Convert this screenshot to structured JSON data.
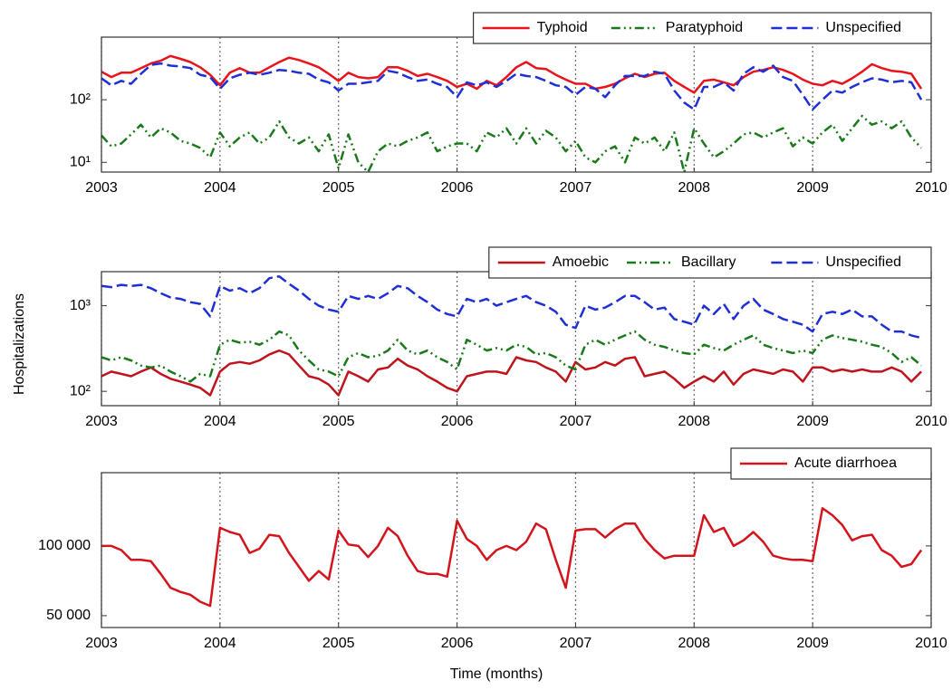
{
  "chart_data": [
    {
      "type": "line",
      "log_scale": true,
      "grid": "x",
      "legend_loc": "upper right",
      "x": [
        2003,
        2003.083,
        2003.167,
        2003.25,
        2003.333,
        2003.417,
        2003.5,
        2003.583,
        2003.667,
        2003.75,
        2003.833,
        2003.917,
        2004,
        2004.083,
        2004.167,
        2004.25,
        2004.333,
        2004.417,
        2004.5,
        2004.583,
        2004.667,
        2004.75,
        2004.833,
        2004.917,
        2005,
        2005.083,
        2005.167,
        2005.25,
        2005.333,
        2005.417,
        2005.5,
        2005.583,
        2005.667,
        2005.75,
        2005.833,
        2005.917,
        2006,
        2006.083,
        2006.167,
        2006.25,
        2006.333,
        2006.417,
        2006.5,
        2006.583,
        2006.667,
        2006.75,
        2006.833,
        2006.917,
        2007,
        2007.083,
        2007.167,
        2007.25,
        2007.333,
        2007.417,
        2007.5,
        2007.583,
        2007.667,
        2007.75,
        2007.833,
        2007.917,
        2008,
        2008.083,
        2008.167,
        2008.25,
        2008.333,
        2008.417,
        2008.5,
        2008.583,
        2008.667,
        2008.75,
        2008.833,
        2008.917,
        2009,
        2009.083,
        2009.167,
        2009.25,
        2009.333,
        2009.417,
        2009.5,
        2009.583,
        2009.667,
        2009.75,
        2009.833,
        2009.917
      ],
      "xlim": [
        2003,
        2010
      ],
      "xticks": [
        2003,
        2004,
        2005,
        2006,
        2007,
        2008,
        2009,
        2010
      ],
      "ylim": [
        7,
        1000
      ],
      "yticks": [
        {
          "value": 10,
          "label": "10¹"
        },
        {
          "value": 100,
          "label": "10²"
        }
      ],
      "series": [
        {
          "name": "Typhoid",
          "color": "#e8141c",
          "style": "solid",
          "values": [
            280,
            230,
            270,
            270,
            320,
            380,
            420,
            500,
            450,
            400,
            330,
            250,
            170,
            270,
            320,
            270,
            270,
            330,
            400,
            470,
            430,
            380,
            330,
            260,
            200,
            270,
            230,
            220,
            230,
            330,
            330,
            290,
            240,
            260,
            230,
            200,
            160,
            180,
            150,
            200,
            170,
            230,
            330,
            400,
            320,
            310,
            250,
            210,
            180,
            180,
            150,
            160,
            180,
            220,
            260,
            230,
            260,
            270,
            200,
            160,
            130,
            200,
            210,
            190,
            170,
            230,
            280,
            300,
            330,
            300,
            260,
            210,
            180,
            170,
            200,
            180,
            220,
            280,
            370,
            320,
            290,
            280,
            260,
            150
          ]
        },
        {
          "name": "Paratyphoid",
          "color": "#1a7a1a",
          "style": "dashdot",
          "values": [
            27,
            18,
            20,
            28,
            40,
            25,
            35,
            30,
            22,
            20,
            17,
            12,
            30,
            18,
            25,
            30,
            20,
            25,
            45,
            25,
            20,
            25,
            15,
            28,
            8,
            28,
            10,
            7,
            15,
            20,
            18,
            22,
            25,
            30,
            15,
            18,
            20,
            20,
            15,
            30,
            25,
            35,
            20,
            35,
            20,
            32,
            25,
            15,
            22,
            12,
            10,
            15,
            18,
            10,
            25,
            20,
            25,
            15,
            30,
            7,
            35,
            20,
            12,
            15,
            20,
            28,
            30,
            25,
            30,
            35,
            18,
            25,
            20,
            30,
            40,
            22,
            35,
            55,
            40,
            45,
            35,
            45,
            25,
            17
          ]
        },
        {
          "name": "Unspecified",
          "color": "#1f2fd6",
          "style": "dashed",
          "values": [
            220,
            170,
            200,
            180,
            260,
            360,
            380,
            350,
            340,
            320,
            250,
            230,
            150,
            220,
            250,
            270,
            250,
            270,
            300,
            290,
            270,
            260,
            210,
            190,
            140,
            180,
            180,
            190,
            200,
            290,
            270,
            230,
            200,
            210,
            180,
            160,
            110,
            190,
            170,
            190,
            160,
            200,
            260,
            240,
            230,
            200,
            170,
            160,
            120,
            160,
            150,
            110,
            170,
            240,
            240,
            240,
            280,
            260,
            140,
            90,
            70,
            160,
            160,
            190,
            140,
            260,
            330,
            280,
            350,
            230,
            200,
            120,
            70,
            100,
            140,
            130,
            160,
            190,
            220,
            210,
            190,
            200,
            190,
            100
          ]
        }
      ]
    },
    {
      "type": "line",
      "log_scale": true,
      "grid": "x",
      "legend_loc": "upper right",
      "ylabel": "Hospitalizations",
      "x": [
        2003,
        2003.083,
        2003.167,
        2003.25,
        2003.333,
        2003.417,
        2003.5,
        2003.583,
        2003.667,
        2003.75,
        2003.833,
        2003.917,
        2004,
        2004.083,
        2004.167,
        2004.25,
        2004.333,
        2004.417,
        2004.5,
        2004.583,
        2004.667,
        2004.75,
        2004.833,
        2004.917,
        2005,
        2005.083,
        2005.167,
        2005.25,
        2005.333,
        2005.417,
        2005.5,
        2005.583,
        2005.667,
        2005.75,
        2005.833,
        2005.917,
        2006,
        2006.083,
        2006.167,
        2006.25,
        2006.333,
        2006.417,
        2006.5,
        2006.583,
        2006.667,
        2006.75,
        2006.833,
        2006.917,
        2007,
        2007.083,
        2007.167,
        2007.25,
        2007.333,
        2007.417,
        2007.5,
        2007.583,
        2007.667,
        2007.75,
        2007.833,
        2007.917,
        2008,
        2008.083,
        2008.167,
        2008.25,
        2008.333,
        2008.417,
        2008.5,
        2008.583,
        2008.667,
        2008.75,
        2008.833,
        2008.917,
        2009,
        2009.083,
        2009.167,
        2009.25,
        2009.333,
        2009.417,
        2009.5,
        2009.583,
        2009.667,
        2009.75,
        2009.833,
        2009.917
      ],
      "xlim": [
        2003,
        2010
      ],
      "xticks": [
        2003,
        2004,
        2005,
        2006,
        2007,
        2008,
        2009,
        2010
      ],
      "ylim": [
        68,
        2500
      ],
      "yticks": [
        {
          "value": 100,
          "label": "10²"
        },
        {
          "value": 1000,
          "label": "10³"
        }
      ],
      "series": [
        {
          "name": "Amoebic",
          "color": "#c0141c",
          "style": "solid",
          "values": [
            150,
            170,
            160,
            150,
            170,
            190,
            160,
            140,
            130,
            120,
            110,
            90,
            170,
            210,
            220,
            210,
            230,
            270,
            300,
            270,
            200,
            150,
            140,
            120,
            90,
            170,
            150,
            130,
            180,
            190,
            240,
            200,
            180,
            150,
            130,
            110,
            100,
            150,
            160,
            170,
            170,
            160,
            250,
            230,
            220,
            190,
            170,
            130,
            220,
            180,
            190,
            220,
            200,
            240,
            250,
            150,
            160,
            170,
            140,
            110,
            130,
            150,
            130,
            170,
            120,
            160,
            180,
            170,
            160,
            180,
            170,
            130,
            190,
            190,
            170,
            180,
            170,
            180,
            170,
            170,
            190,
            170,
            130,
            170
          ]
        },
        {
          "name": "Bacillary",
          "color": "#1a7a1a",
          "style": "dashdot",
          "values": [
            250,
            230,
            250,
            230,
            200,
            190,
            200,
            170,
            150,
            130,
            160,
            150,
            350,
            400,
            370,
            380,
            350,
            400,
            500,
            450,
            300,
            230,
            180,
            170,
            150,
            250,
            280,
            250,
            260,
            300,
            400,
            300,
            270,
            300,
            250,
            220,
            180,
            400,
            350,
            300,
            320,
            300,
            350,
            330,
            270,
            280,
            250,
            200,
            180,
            350,
            400,
            350,
            400,
            450,
            500,
            400,
            350,
            330,
            300,
            280,
            270,
            350,
            320,
            300,
            350,
            400,
            450,
            350,
            320,
            300,
            280,
            300,
            280,
            400,
            450,
            420,
            400,
            380,
            350,
            330,
            280,
            220,
            250,
            200
          ]
        },
        {
          "name": "Unspecified",
          "color": "#1f2fd6",
          "style": "dashed",
          "values": [
            1700,
            1650,
            1750,
            1700,
            1750,
            1600,
            1400,
            1250,
            1200,
            1100,
            1050,
            750,
            1700,
            1500,
            1600,
            1400,
            1600,
            2100,
            2200,
            1800,
            1500,
            1200,
            1000,
            900,
            850,
            1300,
            1200,
            1300,
            1200,
            1400,
            1700,
            1600,
            1300,
            1100,
            900,
            800,
            750,
            1200,
            1100,
            1200,
            1000,
            1100,
            1200,
            1300,
            1100,
            1000,
            850,
            600,
            550,
            1000,
            900,
            950,
            1100,
            1300,
            1300,
            1100,
            900,
            950,
            700,
            650,
            600,
            1000,
            800,
            1050,
            700,
            1000,
            1200,
            900,
            800,
            700,
            650,
            600,
            500,
            800,
            850,
            800,
            900,
            750,
            750,
            600,
            500,
            500,
            450,
            420
          ]
        }
      ]
    },
    {
      "type": "line",
      "log_scale": false,
      "grid": "x",
      "legend_loc": "upper right",
      "xlabel": "Time (months)",
      "x": [
        2003,
        2003.083,
        2003.167,
        2003.25,
        2003.333,
        2003.417,
        2003.5,
        2003.583,
        2003.667,
        2003.75,
        2003.833,
        2003.917,
        2004,
        2004.083,
        2004.167,
        2004.25,
        2004.333,
        2004.417,
        2004.5,
        2004.583,
        2004.667,
        2004.75,
        2004.833,
        2004.917,
        2005,
        2005.083,
        2005.167,
        2005.25,
        2005.333,
        2005.417,
        2005.5,
        2005.583,
        2005.667,
        2005.75,
        2005.833,
        2005.917,
        2006,
        2006.083,
        2006.167,
        2006.25,
        2006.333,
        2006.417,
        2006.5,
        2006.583,
        2006.667,
        2006.75,
        2006.833,
        2006.917,
        2007,
        2007.083,
        2007.167,
        2007.25,
        2007.333,
        2007.417,
        2007.5,
        2007.583,
        2007.667,
        2007.75,
        2007.833,
        2007.917,
        2008,
        2008.083,
        2008.167,
        2008.25,
        2008.333,
        2008.417,
        2008.5,
        2008.583,
        2008.667,
        2008.75,
        2008.833,
        2008.917,
        2009,
        2009.083,
        2009.167,
        2009.25,
        2009.333,
        2009.417,
        2009.5,
        2009.583,
        2009.667,
        2009.75,
        2009.833,
        2009.917
      ],
      "xlim": [
        2003,
        2010
      ],
      "xticks": [
        2003,
        2004,
        2005,
        2006,
        2007,
        2008,
        2009,
        2010
      ],
      "ylim": [
        41500,
        152500
      ],
      "yticks": [
        {
          "value": 50000,
          "label": "50 000"
        },
        {
          "value": 100000,
          "label": "100 000"
        }
      ],
      "series": [
        {
          "name": "Acute diarrhoea",
          "color": "#d4141c",
          "style": "solid",
          "values": [
            100000,
            100000,
            97000,
            90000,
            90000,
            89000,
            80000,
            70000,
            67000,
            65000,
            60000,
            57000,
            113000,
            110000,
            108000,
            95000,
            98000,
            108000,
            107000,
            95000,
            85000,
            75000,
            82000,
            76000,
            111000,
            101000,
            100000,
            92000,
            100000,
            113000,
            107000,
            93000,
            82000,
            80000,
            80000,
            78000,
            118000,
            105000,
            100000,
            90000,
            97000,
            100000,
            97000,
            103000,
            116000,
            112000,
            90000,
            70000,
            111000,
            112000,
            112000,
            106000,
            112000,
            116000,
            116000,
            105000,
            97000,
            91000,
            93000,
            93000,
            93000,
            122000,
            110000,
            113000,
            100000,
            104000,
            110000,
            103000,
            93000,
            91000,
            90000,
            90000,
            89000,
            127000,
            122000,
            115000,
            104000,
            107000,
            108000,
            97000,
            93000,
            85000,
            87000,
            97000
          ]
        }
      ]
    }
  ]
}
